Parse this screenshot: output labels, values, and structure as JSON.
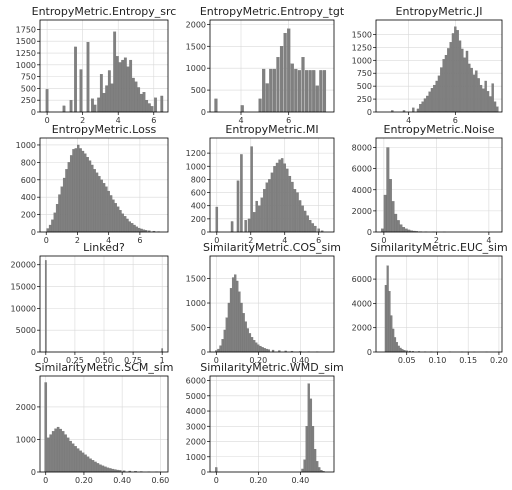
{
  "figure": {
    "layout": "4x3 grid of histograms",
    "bar_color": "#808080",
    "grid": true
  },
  "chart_data": [
    {
      "type": "bar",
      "title": "EntropyMetric.Entropy_src",
      "xlim": [
        -0.4,
        6.8
      ],
      "ylim": [
        0,
        1950
      ],
      "xticks": [
        0,
        2,
        4,
        6
      ],
      "yticks": [
        0,
        250,
        500,
        750,
        1000,
        1250,
        1500,
        1750
      ],
      "bins": [
        [
          0.0,
          480
        ],
        [
          0.95,
          130
        ],
        [
          1.35,
          250
        ],
        [
          1.6,
          1380
        ],
        [
          1.9,
          900
        ],
        [
          2.3,
          1480
        ],
        [
          2.55,
          280
        ],
        [
          2.7,
          150
        ],
        [
          2.9,
          300
        ],
        [
          3.05,
          800
        ],
        [
          3.2,
          400
        ],
        [
          3.35,
          560
        ],
        [
          3.5,
          880
        ],
        [
          3.65,
          600
        ],
        [
          3.8,
          1700
        ],
        [
          3.95,
          1180
        ],
        [
          4.1,
          1050
        ],
        [
          4.25,
          1100
        ],
        [
          4.4,
          1150
        ],
        [
          4.55,
          960
        ],
        [
          4.7,
          1100
        ],
        [
          4.85,
          720
        ],
        [
          5.0,
          640
        ],
        [
          5.15,
          520
        ],
        [
          5.3,
          380
        ],
        [
          5.45,
          420
        ],
        [
          5.6,
          250
        ],
        [
          5.75,
          180
        ],
        [
          5.9,
          120
        ],
        [
          6.1,
          300
        ],
        [
          6.45,
          340
        ]
      ],
      "bin_width": 0.14
    },
    {
      "type": "bar",
      "title": "EntropyMetric.Entropy_tgt",
      "xlim": [
        2.7,
        7.9
      ],
      "ylim": [
        0,
        2100
      ],
      "xticks": [
        4,
        6
      ],
      "yticks": [
        0,
        500,
        1000,
        1500,
        2000
      ],
      "bins": [
        [
          2.95,
          300
        ],
        [
          4.05,
          150
        ],
        [
          4.8,
          300
        ],
        [
          4.95,
          980
        ],
        [
          5.1,
          650
        ],
        [
          5.25,
          980
        ],
        [
          5.4,
          980
        ],
        [
          5.55,
          1250
        ],
        [
          5.7,
          1500
        ],
        [
          5.85,
          1800
        ],
        [
          6.0,
          1900
        ],
        [
          6.15,
          1100
        ],
        [
          6.3,
          980
        ],
        [
          6.45,
          950
        ],
        [
          6.6,
          1250
        ],
        [
          6.75,
          950
        ],
        [
          6.9,
          950
        ],
        [
          7.05,
          950
        ],
        [
          7.2,
          600
        ],
        [
          7.35,
          950
        ],
        [
          7.5,
          950
        ]
      ],
      "bin_width": 0.12
    },
    {
      "type": "bar",
      "title": "EntropyMetric.JI",
      "xlim": [
        2.6,
        8.0
      ],
      "ylim": [
        0,
        1780
      ],
      "xticks": [
        4,
        6
      ],
      "yticks": [
        0,
        250,
        500,
        750,
        1000,
        1250,
        1500
      ],
      "bins": [
        [
          3.3,
          30
        ],
        [
          3.8,
          30
        ],
        [
          4.2,
          80
        ],
        [
          4.4,
          60
        ],
        [
          4.5,
          150
        ],
        [
          4.6,
          200
        ],
        [
          4.7,
          260
        ],
        [
          4.8,
          310
        ],
        [
          4.9,
          390
        ],
        [
          5.0,
          460
        ],
        [
          5.1,
          520
        ],
        [
          5.2,
          600
        ],
        [
          5.3,
          700
        ],
        [
          5.4,
          860
        ],
        [
          5.5,
          1020
        ],
        [
          5.6,
          1100
        ],
        [
          5.7,
          1230
        ],
        [
          5.8,
          1350
        ],
        [
          5.9,
          1520
        ],
        [
          6.0,
          1650
        ],
        [
          6.1,
          1580
        ],
        [
          6.2,
          1380
        ],
        [
          6.3,
          1220
        ],
        [
          6.4,
          1050
        ],
        [
          6.5,
          1180
        ],
        [
          6.6,
          930
        ],
        [
          6.7,
          850
        ],
        [
          6.8,
          720
        ],
        [
          6.9,
          800
        ],
        [
          7.0,
          650
        ],
        [
          7.1,
          520
        ],
        [
          7.2,
          450
        ],
        [
          7.3,
          600
        ],
        [
          7.4,
          400
        ],
        [
          7.5,
          300
        ],
        [
          7.6,
          550
        ],
        [
          7.7,
          200
        ],
        [
          7.8,
          100
        ]
      ],
      "bin_width": 0.09
    },
    {
      "type": "bar",
      "title": "EntropyMetric.Loss",
      "xlim": [
        -0.4,
        7.8
      ],
      "ylim": [
        0,
        1080
      ],
      "xticks": [
        0,
        2,
        4,
        6
      ],
      "yticks": [
        0,
        200,
        400,
        600,
        800,
        1000
      ],
      "bins": [
        [
          0.1,
          40
        ],
        [
          0.25,
          80
        ],
        [
          0.4,
          140
        ],
        [
          0.55,
          220
        ],
        [
          0.7,
          320
        ],
        [
          0.85,
          430
        ],
        [
          1.0,
          520
        ],
        [
          1.15,
          620
        ],
        [
          1.3,
          720
        ],
        [
          1.45,
          800
        ],
        [
          1.6,
          880
        ],
        [
          1.75,
          950
        ],
        [
          1.9,
          960
        ],
        [
          2.05,
          1000
        ],
        [
          2.2,
          960
        ],
        [
          2.35,
          930
        ],
        [
          2.5,
          900
        ],
        [
          2.65,
          860
        ],
        [
          2.8,
          820
        ],
        [
          2.95,
          770
        ],
        [
          3.1,
          720
        ],
        [
          3.25,
          680
        ],
        [
          3.4,
          640
        ],
        [
          3.55,
          600
        ],
        [
          3.7,
          560
        ],
        [
          3.85,
          520
        ],
        [
          4.0,
          470
        ],
        [
          4.15,
          420
        ],
        [
          4.3,
          370
        ],
        [
          4.45,
          330
        ],
        [
          4.6,
          290
        ],
        [
          4.75,
          250
        ],
        [
          4.9,
          210
        ],
        [
          5.05,
          180
        ],
        [
          5.2,
          150
        ],
        [
          5.35,
          120
        ],
        [
          5.5,
          100
        ],
        [
          5.65,
          80
        ],
        [
          5.8,
          60
        ],
        [
          5.95,
          45
        ],
        [
          6.1,
          35
        ],
        [
          6.25,
          25
        ],
        [
          6.4,
          20
        ],
        [
          6.6,
          15
        ],
        [
          6.9,
          10
        ],
        [
          7.2,
          5
        ]
      ],
      "bin_width": 0.14
    },
    {
      "type": "bar",
      "title": "EntropyMetric.MI",
      "xlim": [
        -0.4,
        6.9
      ],
      "ylim": [
        0,
        1430
      ],
      "xticks": [
        0,
        2,
        4,
        6
      ],
      "yticks": [
        0,
        200,
        400,
        600,
        800,
        1000,
        1200
      ],
      "bins": [
        [
          0.0,
          380
        ],
        [
          0.9,
          160
        ],
        [
          1.25,
          780
        ],
        [
          1.45,
          1180
        ],
        [
          1.7,
          180
        ],
        [
          1.9,
          200
        ],
        [
          2.05,
          1300
        ],
        [
          2.2,
          300
        ],
        [
          2.35,
          470
        ],
        [
          2.5,
          400
        ],
        [
          2.65,
          520
        ],
        [
          2.8,
          650
        ],
        [
          2.95,
          750
        ],
        [
          3.1,
          800
        ],
        [
          3.25,
          900
        ],
        [
          3.4,
          1000
        ],
        [
          3.55,
          1050
        ],
        [
          3.7,
          1100
        ],
        [
          3.85,
          1120
        ],
        [
          4.0,
          1040
        ],
        [
          4.15,
          960
        ],
        [
          4.3,
          850
        ],
        [
          4.45,
          760
        ],
        [
          4.6,
          650
        ],
        [
          4.75,
          600
        ],
        [
          4.9,
          480
        ],
        [
          5.05,
          400
        ],
        [
          5.2,
          320
        ],
        [
          5.35,
          250
        ],
        [
          5.5,
          180
        ],
        [
          5.65,
          130
        ],
        [
          5.8,
          90
        ],
        [
          6.0,
          50
        ],
        [
          6.2,
          20
        ]
      ],
      "bin_width": 0.13
    },
    {
      "type": "bar",
      "title": "EntropyMetric.Noise",
      "xlim": [
        -0.3,
        4.5
      ],
      "ylim": [
        0,
        8900
      ],
      "xticks": [
        0,
        2,
        4
      ],
      "yticks": [
        0,
        2000,
        4000,
        6000,
        8000
      ],
      "bins": [
        [
          -0.05,
          300
        ],
        [
          0.05,
          3500
        ],
        [
          0.15,
          8000
        ],
        [
          0.25,
          5000
        ],
        [
          0.35,
          2900
        ],
        [
          0.45,
          1700
        ],
        [
          0.55,
          1100
        ],
        [
          0.65,
          700
        ],
        [
          0.75,
          450
        ],
        [
          0.85,
          300
        ],
        [
          0.95,
          200
        ],
        [
          1.05,
          130
        ],
        [
          1.15,
          90
        ],
        [
          1.25,
          60
        ],
        [
          1.4,
          40
        ],
        [
          1.6,
          20
        ],
        [
          1.9,
          10
        ],
        [
          2.3,
          5
        ]
      ],
      "bin_width": 0.1
    },
    {
      "type": "bar",
      "title": "Linked?",
      "xlim": [
        -0.05,
        1.05
      ],
      "ylim": [
        0,
        22000
      ],
      "xticks": [
        0.0,
        0.25,
        0.5,
        0.75,
        1.0
      ],
      "yticks": [
        0,
        5000,
        10000,
        15000,
        20000
      ],
      "bins": [
        [
          0.0,
          21000
        ],
        [
          1.0,
          800
        ]
      ],
      "bin_width": 0.012
    },
    {
      "type": "bar",
      "title": "SimilarityMetric.COS_sim",
      "xlim": [
        -0.03,
        0.56
      ],
      "ylim": [
        0,
        1960
      ],
      "xticks": [
        0.0,
        0.2,
        0.4
      ],
      "yticks": [
        0,
        500,
        1000,
        1500
      ],
      "bins": [
        [
          0.0,
          30
        ],
        [
          0.01,
          60
        ],
        [
          0.02,
          130
        ],
        [
          0.03,
          260
        ],
        [
          0.04,
          450
        ],
        [
          0.05,
          700
        ],
        [
          0.06,
          1000
        ],
        [
          0.07,
          1300
        ],
        [
          0.08,
          1520
        ],
        [
          0.09,
          1580
        ],
        [
          0.1,
          1450
        ],
        [
          0.11,
          1230
        ],
        [
          0.12,
          1000
        ],
        [
          0.13,
          790
        ],
        [
          0.14,
          620
        ],
        [
          0.15,
          480
        ],
        [
          0.16,
          380
        ],
        [
          0.17,
          300
        ],
        [
          0.18,
          240
        ],
        [
          0.19,
          190
        ],
        [
          0.2,
          150
        ],
        [
          0.21,
          120
        ],
        [
          0.22,
          95
        ],
        [
          0.23,
          75
        ],
        [
          0.24,
          60
        ],
        [
          0.25,
          50
        ],
        [
          0.27,
          40
        ],
        [
          0.3,
          30
        ],
        [
          0.33,
          22
        ],
        [
          0.36,
          18
        ],
        [
          0.4,
          12
        ],
        [
          0.44,
          8
        ],
        [
          0.48,
          5
        ]
      ],
      "bin_width": 0.0095
    },
    {
      "type": "bar",
      "title": "SimilarityMetric.EUC_sim",
      "xlim": [
        0.0,
        0.205
      ],
      "ylim": [
        0,
        7900
      ],
      "xticks": [
        0.05,
        0.1,
        0.15,
        0.2
      ],
      "yticks": [
        0,
        2000,
        4000,
        6000
      ],
      "bins": [
        [
          0.016,
          5500
        ],
        [
          0.019,
          7100
        ],
        [
          0.022,
          5000
        ],
        [
          0.025,
          3000
        ],
        [
          0.028,
          1900
        ],
        [
          0.031,
          1200
        ],
        [
          0.034,
          800
        ],
        [
          0.037,
          500
        ],
        [
          0.04,
          330
        ],
        [
          0.043,
          220
        ],
        [
          0.046,
          150
        ],
        [
          0.05,
          110
        ],
        [
          0.055,
          80
        ],
        [
          0.06,
          60
        ],
        [
          0.07,
          45
        ],
        [
          0.08,
          30
        ],
        [
          0.09,
          25
        ],
        [
          0.1,
          20
        ],
        [
          0.12,
          15
        ],
        [
          0.14,
          10
        ],
        [
          0.16,
          8
        ],
        [
          0.18,
          6
        ],
        [
          0.2,
          5
        ]
      ],
      "bin_width": 0.0029
    },
    {
      "type": "bar",
      "title": "SimilarityMetric.SCM_sim",
      "xlim": [
        -0.03,
        0.64
      ],
      "ylim": [
        0,
        2950
      ],
      "xticks": [
        0.0,
        0.2,
        0.4,
        0.6
      ],
      "yticks": [
        0,
        1000,
        2000
      ],
      "bins": [
        [
          0.0,
          2750
        ],
        [
          0.013,
          1050
        ],
        [
          0.026,
          1150
        ],
        [
          0.039,
          1250
        ],
        [
          0.052,
          1330
        ],
        [
          0.065,
          1380
        ],
        [
          0.078,
          1320
        ],
        [
          0.091,
          1250
        ],
        [
          0.104,
          1150
        ],
        [
          0.117,
          1050
        ],
        [
          0.13,
          950
        ],
        [
          0.143,
          870
        ],
        [
          0.156,
          790
        ],
        [
          0.169,
          720
        ],
        [
          0.182,
          650
        ],
        [
          0.195,
          590
        ],
        [
          0.208,
          530
        ],
        [
          0.221,
          470
        ],
        [
          0.234,
          410
        ],
        [
          0.247,
          360
        ],
        [
          0.26,
          310
        ],
        [
          0.273,
          265
        ],
        [
          0.286,
          225
        ],
        [
          0.299,
          190
        ],
        [
          0.312,
          160
        ],
        [
          0.325,
          130
        ],
        [
          0.338,
          110
        ],
        [
          0.351,
          90
        ],
        [
          0.364,
          75
        ],
        [
          0.377,
          60
        ],
        [
          0.39,
          50
        ],
        [
          0.41,
          40
        ],
        [
          0.44,
          30
        ],
        [
          0.47,
          22
        ],
        [
          0.5,
          15
        ],
        [
          0.54,
          10
        ],
        [
          0.58,
          6
        ]
      ],
      "bin_width": 0.012
    },
    {
      "type": "bar",
      "title": "SimilarityMetric.WMD_sim",
      "xlim": [
        -0.03,
        0.56
      ],
      "ylim": [
        0,
        6300
      ],
      "xticks": [
        0.0,
        0.2,
        0.4
      ],
      "yticks": [
        0,
        1000,
        2000,
        3000,
        4000,
        5000,
        6000
      ],
      "bins": [
        [
          0.0,
          300
        ],
        [
          0.41,
          200
        ],
        [
          0.42,
          800
        ],
        [
          0.43,
          3000
        ],
        [
          0.44,
          5800
        ],
        [
          0.45,
          4800
        ],
        [
          0.46,
          3000
        ],
        [
          0.47,
          1500
        ],
        [
          0.48,
          700
        ],
        [
          0.49,
          300
        ],
        [
          0.5,
          120
        ],
        [
          0.51,
          50
        ]
      ],
      "bin_width": 0.0095
    }
  ]
}
